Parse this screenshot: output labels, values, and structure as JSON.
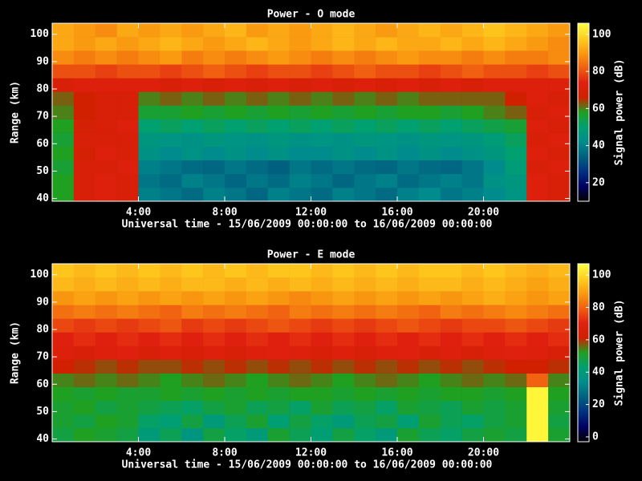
{
  "chart_data": [
    {
      "type": "heatmap",
      "title": "Power - O mode",
      "xlabel": "Universal time - 15/06/2009 00:00:00 to 16/06/2009 00:00:00",
      "ylabel": "Range (km)",
      "colorbar_label": "Signal power (dB)",
      "xlim": [
        0,
        24
      ],
      "xticks": [
        {
          "value": 4,
          "label": "4:00"
        },
        {
          "value": 8,
          "label": "8:00"
        },
        {
          "value": 12,
          "label": "12:00"
        },
        {
          "value": 16,
          "label": "16:00"
        },
        {
          "value": 20,
          "label": "20:00"
        }
      ],
      "ylim": [
        39,
        104
      ],
      "yticks": [
        40,
        50,
        60,
        70,
        80,
        90,
        100
      ],
      "clim": [
        10,
        106
      ],
      "cticks": [
        20,
        40,
        60,
        80,
        100
      ],
      "colormap": [
        "#000000",
        "#000060",
        "#003080",
        "#00607f",
        "#008c8c",
        "#00a070",
        "#20a020",
        "#d02000",
        "#e02010",
        "#f06010",
        "#fa9a10",
        "#ffd020",
        "#ffff40"
      ],
      "x_bins": [
        0,
        1,
        2,
        3,
        4,
        5,
        6,
        7,
        8,
        9,
        10,
        11,
        12,
        13,
        14,
        15,
        16,
        17,
        18,
        19,
        20,
        21,
        22,
        23,
        24
      ],
      "y_bins": [
        39,
        44,
        49,
        54,
        59,
        64,
        69,
        74,
        79,
        84,
        89,
        94,
        99,
        104
      ],
      "z": [
        [
          58,
          70,
          72,
          70,
          40,
          38,
          36,
          40,
          38,
          35,
          40,
          38,
          36,
          40,
          38,
          36,
          40,
          42,
          38,
          40,
          42,
          45,
          72,
          70
        ],
        [
          58,
          70,
          72,
          70,
          38,
          36,
          40,
          38,
          35,
          38,
          36,
          40,
          38,
          35,
          38,
          40,
          36,
          38,
          40,
          38,
          44,
          46,
          72,
          70
        ],
        [
          56,
          70,
          70,
          72,
          40,
          38,
          36,
          35,
          38,
          36,
          34,
          38,
          36,
          38,
          36,
          35,
          38,
          36,
          35,
          38,
          42,
          48,
          70,
          72
        ],
        [
          58,
          68,
          72,
          70,
          44,
          42,
          44,
          42,
          44,
          42,
          44,
          42,
          42,
          44,
          42,
          44,
          42,
          44,
          42,
          44,
          46,
          50,
          72,
          70
        ],
        [
          56,
          70,
          70,
          70,
          46,
          45,
          44,
          46,
          45,
          44,
          46,
          44,
          45,
          44,
          46,
          45,
          44,
          46,
          45,
          46,
          48,
          52,
          70,
          72
        ],
        [
          58,
          68,
          70,
          72,
          50,
          52,
          50,
          52,
          50,
          52,
          50,
          52,
          50,
          52,
          50,
          52,
          50,
          52,
          50,
          52,
          54,
          56,
          72,
          70
        ],
        [
          60,
          66,
          70,
          70,
          56,
          56,
          58,
          56,
          58,
          56,
          58,
          56,
          58,
          56,
          58,
          56,
          58,
          58,
          56,
          58,
          60,
          62,
          70,
          72
        ],
        [
          62,
          66,
          70,
          70,
          60,
          62,
          60,
          62,
          60,
          62,
          60,
          62,
          60,
          62,
          60,
          62,
          60,
          62,
          62,
          62,
          62,
          66,
          72,
          70
        ],
        [
          70,
          72,
          72,
          72,
          72,
          70,
          72,
          70,
          72,
          70,
          72,
          70,
          72,
          70,
          72,
          70,
          72,
          70,
          72,
          70,
          72,
          72,
          72,
          72
        ],
        [
          80,
          80,
          78,
          80,
          80,
          78,
          80,
          82,
          80,
          78,
          80,
          80,
          78,
          80,
          82,
          80,
          80,
          78,
          80,
          82,
          80,
          80,
          78,
          80
        ],
        [
          88,
          86,
          88,
          86,
          88,
          90,
          86,
          88,
          86,
          88,
          90,
          88,
          86,
          88,
          86,
          88,
          90,
          88,
          88,
          86,
          88,
          86,
          86,
          88
        ],
        [
          92,
          90,
          92,
          90,
          92,
          94,
          92,
          90,
          92,
          94,
          92,
          90,
          92,
          94,
          92,
          94,
          92,
          92,
          94,
          92,
          94,
          92,
          90,
          88
        ],
        [
          92,
          90,
          88,
          92,
          90,
          92,
          90,
          92,
          94,
          90,
          92,
          90,
          92,
          94,
          92,
          90,
          92,
          94,
          92,
          94,
          96,
          94,
          92,
          90
        ]
      ]
    },
    {
      "type": "heatmap",
      "title": "Power - E mode",
      "xlabel": "Universal time - 15/06/2009 00:00:00 to 16/06/2009 00:00:00",
      "ylabel": "Range (km)",
      "colorbar_label": "Signal power (dB)",
      "xlim": [
        0,
        24
      ],
      "xticks": [
        {
          "value": 4,
          "label": "4:00"
        },
        {
          "value": 8,
          "label": "8:00"
        },
        {
          "value": 12,
          "label": "12:00"
        },
        {
          "value": 16,
          "label": "16:00"
        },
        {
          "value": 20,
          "label": "20:00"
        }
      ],
      "ylim": [
        39,
        104
      ],
      "yticks": [
        40,
        50,
        60,
        70,
        80,
        90,
        100
      ],
      "clim": [
        -3,
        107
      ],
      "cticks": [
        0,
        20,
        40,
        60,
        80,
        100
      ],
      "colormap": [
        "#000000",
        "#000060",
        "#003080",
        "#00607f",
        "#008c8c",
        "#00a070",
        "#20a020",
        "#d02000",
        "#e02010",
        "#f06010",
        "#fa9a10",
        "#ffd020",
        "#ffff40"
      ],
      "x_bins": [
        0,
        1,
        2,
        3,
        4,
        5,
        6,
        7,
        8,
        9,
        10,
        11,
        12,
        13,
        14,
        15,
        16,
        17,
        18,
        19,
        20,
        21,
        22,
        23,
        24
      ],
      "y_bins": [
        39,
        44,
        49,
        54,
        59,
        64,
        69,
        74,
        79,
        84,
        89,
        94,
        99,
        104
      ],
      "z": [
        [
          48,
          52,
          50,
          48,
          40,
          46,
          38,
          48,
          44,
          40,
          50,
          46,
          42,
          48,
          44,
          40,
          50,
          46,
          44,
          48,
          50,
          48,
          105,
          50
        ],
        [
          50,
          48,
          52,
          50,
          44,
          42,
          48,
          40,
          46,
          50,
          42,
          48,
          44,
          40,
          46,
          48,
          42,
          50,
          46,
          44,
          48,
          50,
          105,
          48
        ],
        [
          50,
          52,
          48,
          50,
          48,
          46,
          44,
          48,
          50,
          46,
          48,
          44,
          50,
          46,
          48,
          44,
          50,
          48,
          46,
          50,
          48,
          50,
          105,
          50
        ],
        [
          52,
          50,
          52,
          50,
          50,
          52,
          50,
          52,
          50,
          52,
          50,
          52,
          52,
          50,
          52,
          50,
          52,
          50,
          52,
          52,
          50,
          52,
          105,
          52
        ],
        [
          54,
          56,
          54,
          56,
          54,
          52,
          54,
          56,
          54,
          52,
          54,
          56,
          54,
          52,
          54,
          56,
          54,
          52,
          54,
          56,
          54,
          56,
          80,
          54
        ],
        [
          62,
          60,
          58,
          60,
          58,
          58,
          60,
          58,
          60,
          58,
          60,
          58,
          60,
          58,
          60,
          58,
          60,
          58,
          60,
          58,
          60,
          62,
          62,
          60
        ],
        [
          68,
          66,
          68,
          70,
          66,
          68,
          66,
          68,
          66,
          68,
          70,
          68,
          66,
          68,
          66,
          68,
          70,
          66,
          68,
          66,
          68,
          70,
          68,
          66
        ],
        [
          70,
          72,
          70,
          72,
          70,
          72,
          70,
          72,
          70,
          72,
          70,
          72,
          70,
          72,
          70,
          72,
          70,
          72,
          70,
          72,
          70,
          72,
          70,
          72
        ],
        [
          76,
          74,
          76,
          74,
          76,
          78,
          74,
          76,
          74,
          76,
          78,
          76,
          74,
          76,
          74,
          76,
          78,
          76,
          74,
          76,
          76,
          78,
          76,
          74
        ],
        [
          82,
          84,
          82,
          84,
          82,
          80,
          84,
          82,
          84,
          82,
          80,
          84,
          82,
          84,
          82,
          84,
          82,
          80,
          84,
          82,
          84,
          86,
          84,
          82
        ],
        [
          88,
          90,
          88,
          90,
          88,
          90,
          88,
          90,
          88,
          90,
          88,
          86,
          88,
          90,
          88,
          90,
          88,
          90,
          88,
          90,
          92,
          90,
          88,
          90
        ],
        [
          94,
          92,
          94,
          92,
          94,
          92,
          94,
          94,
          92,
          94,
          92,
          94,
          92,
          94,
          92,
          94,
          92,
          94,
          94,
          92,
          94,
          92,
          90,
          92
        ],
        [
          96,
          94,
          96,
          94,
          96,
          94,
          96,
          94,
          96,
          94,
          96,
          96,
          94,
          96,
          94,
          96,
          94,
          96,
          96,
          94,
          96,
          94,
          92,
          94
        ]
      ]
    }
  ]
}
